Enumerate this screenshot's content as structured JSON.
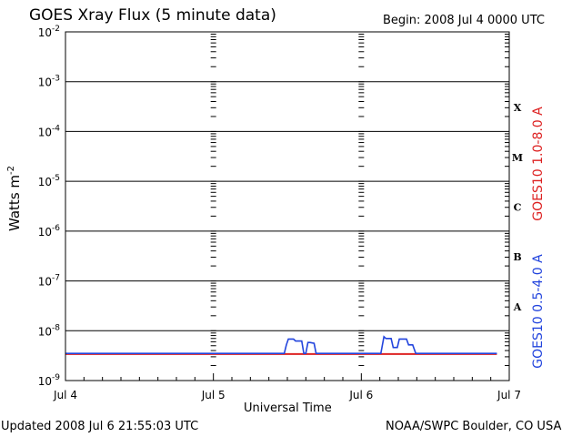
{
  "header": {
    "title": "GOES Xray Flux (5 minute data)",
    "begin": "Begin:  2008 Jul 4 0000 UTC"
  },
  "footer": {
    "updated": "Updated 2008 Jul  6 21:55:03 UTC",
    "credit": "NOAA/SWPC Boulder, CO USA"
  },
  "colors": {
    "long_channel": "#dd2222",
    "short_channel": "#2244dd",
    "grid": "#000000",
    "background": "#ffffff"
  },
  "chart_data": {
    "type": "line",
    "title": "GOES Xray Flux (5 minute data)",
    "xlabel": "Universal Time",
    "ylabel": "Watts m",
    "ylabel_sup": "-2",
    "yscale": "log",
    "xlim": [
      "2008-07-04T00:00",
      "2008-07-07T00:00"
    ],
    "ylim": [
      1e-09,
      0.01
    ],
    "x_ticks": [
      "Jul 4",
      "Jul 5",
      "Jul 6",
      "Jul 7"
    ],
    "y_ticks": [
      {
        "value": 0.01,
        "base": "10",
        "exp": "-2"
      },
      {
        "value": 0.001,
        "base": "10",
        "exp": "-3"
      },
      {
        "value": 0.0001,
        "base": "10",
        "exp": "-4"
      },
      {
        "value": 1e-05,
        "base": "10",
        "exp": "-5"
      },
      {
        "value": 1e-06,
        "base": "10",
        "exp": "-6"
      },
      {
        "value": 1e-07,
        "base": "10",
        "exp": "-7"
      },
      {
        "value": 1e-08,
        "base": "10",
        "exp": "-8"
      },
      {
        "value": 1e-09,
        "base": "10",
        "exp": "-9"
      }
    ],
    "flare_classes": [
      {
        "label": "X",
        "low": 0.0001,
        "high": 0.001
      },
      {
        "label": "M",
        "low": 1e-05,
        "high": 0.0001
      },
      {
        "label": "C",
        "low": 1e-06,
        "high": 1e-05
      },
      {
        "label": "B",
        "low": 1e-07,
        "high": 1e-06
      },
      {
        "label": "A",
        "low": 1e-08,
        "high": 1e-07
      }
    ],
    "grid": true,
    "series": [
      {
        "name": "GOES10 1.0-8.0 A",
        "color": "#dd2222",
        "x": [
          "2008-07-04T00:00",
          "2008-07-06T22:00"
        ],
        "y": [
          3.4e-09,
          3.4e-09
        ]
      },
      {
        "name": "GOES10 0.5-4.0 A",
        "color": "#2244dd",
        "x": [
          "2008-07-04T00:00",
          "2008-07-05T11:30",
          "2008-07-05T11:50",
          "2008-07-05T12:10",
          "2008-07-05T13:00",
          "2008-07-05T13:20",
          "2008-07-05T14:20",
          "2008-07-05T14:40",
          "2008-07-05T15:00",
          "2008-07-05T15:20",
          "2008-07-05T15:40",
          "2008-07-05T16:20",
          "2008-07-05T16:40",
          "2008-07-06T03:10",
          "2008-07-06T03:40",
          "2008-07-06T04:00",
          "2008-07-06T04:50",
          "2008-07-06T05:10",
          "2008-07-06T05:50",
          "2008-07-06T06:10",
          "2008-07-06T07:20",
          "2008-07-06T07:40",
          "2008-07-06T08:20",
          "2008-07-06T08:50",
          "2008-07-06T22:00"
        ],
        "y": [
          3.5e-09,
          3.5e-09,
          5.2e-09,
          6.8e-09,
          6.8e-09,
          6.2e-09,
          6.2e-09,
          3.5e-09,
          3.5e-09,
          5.8e-09,
          5.8e-09,
          5.6e-09,
          3.5e-09,
          3.5e-09,
          7.6e-09,
          7e-09,
          7e-09,
          4.6e-09,
          4.6e-09,
          6.8e-09,
          6.8e-09,
          5.2e-09,
          5.2e-09,
          3.5e-09,
          3.5e-09
        ]
      }
    ]
  }
}
